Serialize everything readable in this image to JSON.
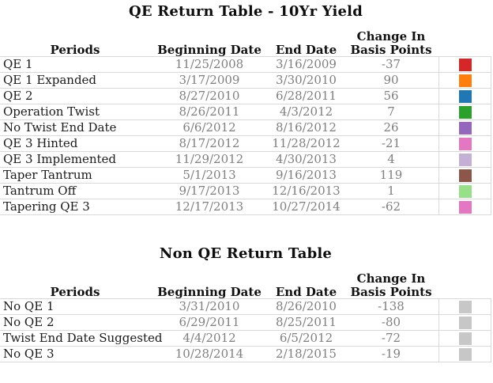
{
  "header": {
    "periods": "Periods",
    "beginning_date": "Beginning Date",
    "end_date": "End Date",
    "change_line1": "Change In",
    "change_line2": "Basis Points"
  },
  "theme": {
    "background": "#ffffff",
    "label_text": "#1a1a1a",
    "value_text": "#7f7f7f",
    "grid_border": "#d9d9d9"
  },
  "chart_data": [
    {
      "type": "table",
      "title": "QE Return Table - 10Yr Yield",
      "columns": [
        "Periods",
        "Beginning Date",
        "End Date",
        "Change In Basis Points",
        "Color"
      ],
      "rows": [
        {
          "period": "QE 1",
          "begin": "11/25/2008",
          "end": "3/16/2009",
          "change": -37,
          "color": "#d62728"
        },
        {
          "period": "QE 1 Expanded",
          "begin": "3/17/2009",
          "end": "3/30/2010",
          "change": 90,
          "color": "#ff7f0e"
        },
        {
          "period": "QE 2",
          "begin": "8/27/2010",
          "end": "6/28/2011",
          "change": 56,
          "color": "#1f77b4"
        },
        {
          "period": "Operation Twist",
          "begin": "8/26/2011",
          "end": "4/3/2012",
          "change": 7,
          "color": "#2ca02c"
        },
        {
          "period": "No Twist End Date",
          "begin": "6/6/2012",
          "end": "8/16/2012",
          "change": 26,
          "color": "#9467bd"
        },
        {
          "period": "QE 3 Hinted",
          "begin": "8/17/2012",
          "end": "11/28/2012",
          "change": -21,
          "color": "#e377c2"
        },
        {
          "period": "QE 3 Implemented",
          "begin": "11/29/2012",
          "end": "4/30/2013",
          "change": 4,
          "color": "#c5b0d5"
        },
        {
          "period": "Taper Tantrum",
          "begin": "5/1/2013",
          "end": "9/16/2013",
          "change": 119,
          "color": "#8c564b"
        },
        {
          "period": "Tantrum Off",
          "begin": "9/17/2013",
          "end": "12/16/2013",
          "change": 1,
          "color": "#98df8a"
        },
        {
          "period": "Tapering QE 3",
          "begin": "12/17/2013",
          "end": "10/27/2014",
          "change": -62,
          "color": "#e377c2"
        }
      ]
    },
    {
      "type": "table",
      "title": "Non QE Return Table",
      "columns": [
        "Periods",
        "Beginning Date",
        "End Date",
        "Change In Basis Points",
        "Color"
      ],
      "rows": [
        {
          "period": "No QE 1",
          "begin": "3/31/2010",
          "end": "8/26/2010",
          "change": -138,
          "color": "#c7c7c7"
        },
        {
          "period": "No QE 2",
          "begin": "6/29/2011",
          "end": "8/25/2011",
          "change": -80,
          "color": "#c7c7c7"
        },
        {
          "period": "Twist End Date Suggested",
          "begin": "4/4/2012",
          "end": "6/5/2012",
          "change": -72,
          "color": "#c7c7c7"
        },
        {
          "period": "No QE 3",
          "begin": "10/28/2014",
          "end": "2/18/2015",
          "change": -19,
          "color": "#c7c7c7"
        }
      ]
    }
  ]
}
